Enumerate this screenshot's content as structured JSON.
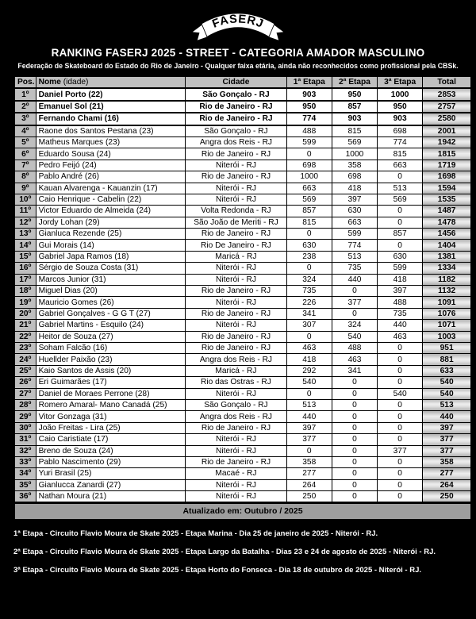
{
  "page": {
    "logo_text": "FASERJ",
    "title": "RANKING FASERJ 2025 - STREET - CATEGORIA AMADOR MASCULINO",
    "subtitle": "Federação de Skateboard do Estado do Rio de Janeiro - Qualquer faixa etária, ainda não reconhecidos como profissional pela CBSk."
  },
  "colors": {
    "page_bg": "#000000",
    "header_bg": "#bfbfbf",
    "pos_col_bg": "#bfbfbf",
    "total_col_bg": "#d9d9d9",
    "updated_bar_bg": "#9e9e9e",
    "row_bg": "#ffffff",
    "border": "#000000",
    "title_text": "#ffffff"
  },
  "table": {
    "headers": {
      "pos": "Pos.",
      "name": "Nome",
      "name_suffix": " (idade)",
      "city": "Cidade",
      "e1": "1ª Etapa",
      "e2": "2ª Etapa",
      "e3": "3ª Etapa",
      "total": "Total"
    },
    "rows": [
      {
        "pos": "1º",
        "name": "Daniel Porto (22)",
        "city": "São Gonçalo - RJ",
        "e1": "903",
        "e2": "950",
        "e3": "1000",
        "total": "2853",
        "bold": true
      },
      {
        "pos": "2º",
        "name": "Emanuel Sol (21)",
        "city": "Rio de Janeiro - RJ",
        "e1": "950",
        "e2": "857",
        "e3": "950",
        "total": "2757",
        "bold": true
      },
      {
        "pos": "3º",
        "name": "Fernando Chami (16)",
        "city": "Rio de Janeiro - RJ",
        "e1": "774",
        "e2": "903",
        "e3": "903",
        "total": "2580",
        "bold": true
      },
      {
        "pos": "4º",
        "name": "Raone dos Santos Pestana (23)",
        "city": "São Gonçalo - RJ",
        "e1": "488",
        "e2": "815",
        "e3": "698",
        "total": "2001",
        "bold": false
      },
      {
        "pos": "5º",
        "name": "Matheus Marques (23)",
        "city": "Angra dos Reis - RJ",
        "e1": "599",
        "e2": "569",
        "e3": "774",
        "total": "1942",
        "bold": false
      },
      {
        "pos": "6º",
        "name": "Eduardo Sousa (24)",
        "city": "Rio de Janeiro - RJ",
        "e1": "0",
        "e2": "1000",
        "e3": "815",
        "total": "1815",
        "bold": false
      },
      {
        "pos": "7º",
        "name": "Pedro Feijó (24)",
        "city": "Niterói - RJ",
        "e1": "698",
        "e2": "358",
        "e3": "663",
        "total": "1719",
        "bold": false
      },
      {
        "pos": "8º",
        "name": "Pablo André (26)",
        "city": "Rio de Janeiro - RJ",
        "e1": "1000",
        "e2": "698",
        "e3": "0",
        "total": "1698",
        "bold": false
      },
      {
        "pos": "9º",
        "name": "Kauan Alvarenga - Kauanzin (17)",
        "city": "Niterói - RJ",
        "e1": "663",
        "e2": "418",
        "e3": "513",
        "total": "1594",
        "bold": false
      },
      {
        "pos": "10º",
        "name": "Caio Henrique - Cabelin (22)",
        "city": "Niterói - RJ",
        "e1": "569",
        "e2": "397",
        "e3": "569",
        "total": "1535",
        "bold": false
      },
      {
        "pos": "11º",
        "name": "Victor Eduardo de Almeida (24)",
        "city": "Volta Redonda - RJ",
        "e1": "857",
        "e2": "630",
        "e3": "0",
        "total": "1487",
        "bold": false
      },
      {
        "pos": "12º",
        "name": "Jordy Lohan (29)",
        "city": "São João de Meriti - RJ",
        "e1": "815",
        "e2": "663",
        "e3": "0",
        "total": "1478",
        "bold": false
      },
      {
        "pos": "13º",
        "name": "Gianluca Rezende (25)",
        "city": "Rio de Janeiro - RJ",
        "e1": "0",
        "e2": "599",
        "e3": "857",
        "total": "1456",
        "bold": false
      },
      {
        "pos": "14º",
        "name": "Gui Morais (14)",
        "city": "Rio De Janeiro - RJ",
        "e1": "630",
        "e2": "774",
        "e3": "0",
        "total": "1404",
        "bold": false
      },
      {
        "pos": "15º",
        "name": "Gabriel Japa Ramos (18)",
        "city": "Maricá - RJ",
        "e1": "238",
        "e2": "513",
        "e3": "630",
        "total": "1381",
        "bold": false
      },
      {
        "pos": "16º",
        "name": "Sérgio de Souza Costa (31)",
        "city": "Niterói - RJ",
        "e1": "0",
        "e2": "735",
        "e3": "599",
        "total": "1334",
        "bold": false
      },
      {
        "pos": "17º",
        "name": "Marcos Junior (31)",
        "city": "Niterói - RJ",
        "e1": "324",
        "e2": "440",
        "e3": "418",
        "total": "1182",
        "bold": false
      },
      {
        "pos": "18º",
        "name": "Miguel Dias (20)",
        "city": "Rio de Janeiro - RJ",
        "e1": "735",
        "e2": "0",
        "e3": "397",
        "total": "1132",
        "bold": false
      },
      {
        "pos": "19º",
        "name": "Mauricio Gomes (26)",
        "city": "Niterói - RJ",
        "e1": "226",
        "e2": "377",
        "e3": "488",
        "total": "1091",
        "bold": false
      },
      {
        "pos": "20º",
        "name": "Gabriel Gonçalves - G G T (27)",
        "city": "Rio de Janeiro - RJ",
        "e1": "341",
        "e2": "0",
        "e3": "735",
        "total": "1076",
        "bold": false
      },
      {
        "pos": "21º",
        "name": "Gabriel Martins - Esquilo (24)",
        "city": "Niterói - RJ",
        "e1": "307",
        "e2": "324",
        "e3": "440",
        "total": "1071",
        "bold": false
      },
      {
        "pos": "22º",
        "name": "Heitor de Souza (27)",
        "city": "Rio de Janeiro - RJ",
        "e1": "0",
        "e2": "540",
        "e3": "463",
        "total": "1003",
        "bold": false
      },
      {
        "pos": "23º",
        "name": "Soham Falcão (16)",
        "city": "Rio de Janeiro - RJ",
        "e1": "463",
        "e2": "488",
        "e3": "0",
        "total": "951",
        "bold": false
      },
      {
        "pos": "24º",
        "name": "Huellder Paixão (23)",
        "city": "Angra dos Reis - RJ",
        "e1": "418",
        "e2": "463",
        "e3": "0",
        "total": "881",
        "bold": false
      },
      {
        "pos": "25º",
        "name": "Kaio Santos de Assis (20)",
        "city": "Maricá - RJ",
        "e1": "292",
        "e2": "341",
        "e3": "0",
        "total": "633",
        "bold": false
      },
      {
        "pos": "26º",
        "name": "Eri Guimarães (17)",
        "city": "Rio das Ostras - RJ",
        "e1": "540",
        "e2": "0",
        "e3": "0",
        "total": "540",
        "bold": false
      },
      {
        "pos": "27º",
        "name": "Daniel de Moraes Perrone (28)",
        "city": "Niterói - RJ",
        "e1": "0",
        "e2": "0",
        "e3": "540",
        "total": "540",
        "bold": false
      },
      {
        "pos": "28º",
        "name": "Romero Amaral- Mano Canadá (25)",
        "city": "São Gonçalo - RJ",
        "e1": "513",
        "e2": "0",
        "e3": "0",
        "total": "513",
        "bold": false
      },
      {
        "pos": "29º",
        "name": "Vitor Gonzaga (31)",
        "city": "Angra dos Reis - RJ",
        "e1": "440",
        "e2": "0",
        "e3": "0",
        "total": "440",
        "bold": false
      },
      {
        "pos": "30º",
        "name": "João Freitas - Lira (25)",
        "city": "Rio de Janeiro - RJ",
        "e1": "397",
        "e2": "0",
        "e3": "0",
        "total": "397",
        "bold": false
      },
      {
        "pos": "31º",
        "name": "Caio Caristiate (17)",
        "city": "Niterói - RJ",
        "e1": "377",
        "e2": "0",
        "e3": "0",
        "total": "377",
        "bold": false
      },
      {
        "pos": "32º",
        "name": "Breno de Souza (24)",
        "city": "Niterói - RJ",
        "e1": "0",
        "e2": "0",
        "e3": "377",
        "total": "377",
        "bold": false
      },
      {
        "pos": "33º",
        "name": "Pablo Nascimento (29)",
        "city": "Rio de Janeiro - RJ",
        "e1": "358",
        "e2": "0",
        "e3": "0",
        "total": "358",
        "bold": false
      },
      {
        "pos": "34º",
        "name": "Yuri Brasil (25)",
        "city": "Macaé - RJ",
        "e1": "277",
        "e2": "0",
        "e3": "0",
        "total": "277",
        "bold": false
      },
      {
        "pos": "35º",
        "name": "Gianlucca Zanardi (27)",
        "city": "Niterói - RJ",
        "e1": "264",
        "e2": "0",
        "e3": "0",
        "total": "264",
        "bold": false
      },
      {
        "pos": "36º",
        "name": "Nathan Moura (21)",
        "city": "Niterói - RJ",
        "e1": "250",
        "e2": "0",
        "e3": "0",
        "total": "250",
        "bold": false
      }
    ]
  },
  "footer": {
    "updated": "Atualizado em: Outubro / 2025",
    "notes": [
      "1ª Etapa - Circuito Flavio Moura de Skate 2025 - Etapa Marina - Dia 25 de janeiro de 2025 - Niterói - RJ.",
      "2ª Etapa - Circuito Flavio Moura de Skate 2025 - Etapa Largo da Batalha - Dias 23 e 24 de agosto de 2025 - Niterói - RJ.",
      "3ª Etapa - Circuito Flavio Moura de Skate 2025 - Etapa Horto do Fonseca - Dia 18 de outubro de 2025 - Niterói - RJ."
    ]
  }
}
